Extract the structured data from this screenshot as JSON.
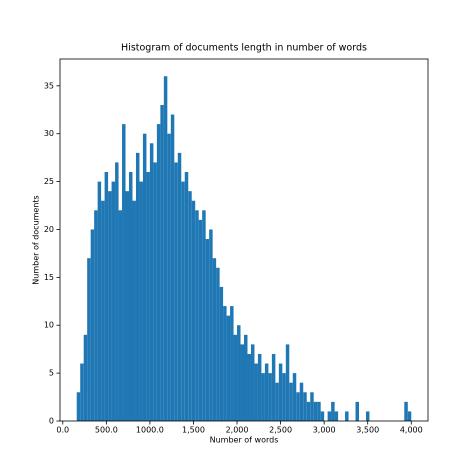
{
  "chart_data": {
    "type": "histogram",
    "title": "Histogram of documents length in number of words",
    "xlabel": "Number of words",
    "ylabel": "Number of documents",
    "color": "#1f77b4",
    "bins": [
      160,
      200,
      240,
      280,
      320,
      360,
      400,
      440,
      480,
      520,
      560,
      600,
      640,
      680,
      720,
      760,
      800,
      840,
      880,
      920,
      960,
      1000,
      1040,
      1080,
      1120,
      1160,
      1200,
      1240,
      1280,
      1320,
      1360,
      1400,
      1440,
      1480,
      1520,
      1560,
      1600,
      1640,
      1680,
      1720,
      1760,
      1800,
      1840,
      1880,
      1920,
      1960,
      2000,
      2040,
      2080,
      2120,
      2160,
      2200,
      2240,
      2280,
      2320,
      2360,
      2400,
      2440,
      2480,
      2520,
      2560,
      2600,
      2640,
      2680,
      2720,
      2760,
      2800,
      2840,
      2880,
      2920,
      2960,
      3000,
      3040,
      3080,
      3120,
      3160,
      3200,
      3240,
      3280,
      3320,
      3360,
      3400,
      3440,
      3480,
      3520,
      3560,
      3600,
      3640,
      3680,
      3720,
      3760,
      3800,
      3840,
      3880,
      3920,
      3960,
      4000
    ],
    "values": [
      3,
      6,
      9,
      17,
      20,
      22,
      25,
      23,
      26,
      24,
      25,
      27,
      22,
      31,
      24,
      26,
      23,
      28,
      25,
      30,
      26,
      29,
      27,
      31,
      33,
      36,
      30,
      32,
      27,
      28,
      25,
      26,
      24,
      23,
      22,
      21,
      22,
      19,
      20,
      17,
      16,
      14,
      12,
      11,
      12,
      9,
      10,
      8,
      9,
      7,
      8,
      6,
      7,
      5,
      6,
      5,
      7,
      4,
      6,
      5,
      8,
      4,
      5,
      3,
      4,
      3,
      2,
      3,
      2,
      2,
      1,
      0,
      1,
      2,
      1,
      0,
      0,
      1,
      0,
      0,
      2,
      0,
      0,
      1,
      0,
      0,
      0,
      0,
      0,
      0,
      0,
      0,
      0,
      0,
      2,
      1
    ],
    "xlim": [
      -32,
      4192
    ],
    "ylim": [
      0,
      37.8
    ],
    "xticks": [
      {
        "value": 0,
        "label": "0.0"
      },
      {
        "value": 500,
        "label": "500.0"
      },
      {
        "value": 1000,
        "label": "1000.0"
      },
      {
        "value": 1500,
        "label": "1,500"
      },
      {
        "value": 2000,
        "label": "2,000"
      },
      {
        "value": 2500,
        "label": "2,500"
      },
      {
        "value": 3000,
        "label": "3,000"
      },
      {
        "value": 3500,
        "label": "3,500"
      },
      {
        "value": 4000,
        "label": "4,000"
      }
    ],
    "yticks": [
      0,
      5,
      10,
      15,
      20,
      25,
      30,
      35
    ]
  }
}
